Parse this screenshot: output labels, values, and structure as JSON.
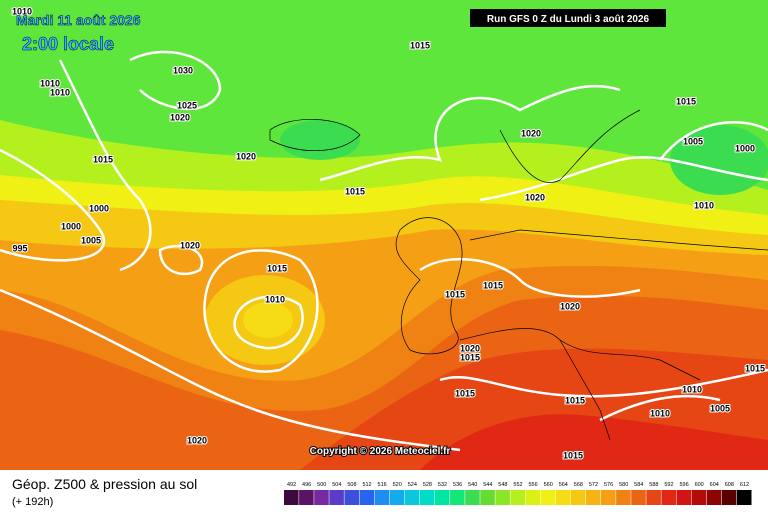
{
  "header": {
    "valid_time": "Mardi 11 août 2026",
    "local_time": "2:00 locale",
    "run": "Run GFS 0 Z du Lundi 3 août 2026"
  },
  "isobar_labels": [
    "1010",
    "1030",
    "1010",
    "1010",
    "1025",
    "1020",
    "1015",
    "1015",
    "1020",
    "1005",
    "1000",
    "1020",
    "1015",
    "1015",
    "1020",
    "1010",
    "1000",
    "1000",
    "1005",
    "1020",
    "995",
    "1015",
    "1015",
    "1015",
    "1010",
    "1020",
    "1020",
    "1015",
    "1015",
    "1010",
    "1015",
    "1015",
    "1005",
    "1010",
    "1020",
    "1015"
  ],
  "copyright": "Copyright © 2026 Meteociel.fr",
  "legend": {
    "title": "Géop. Z500 & pression au sol",
    "lead_time": "(+ 192h)",
    "scale": [
      492,
      496,
      500,
      504,
      508,
      512,
      516,
      520,
      524,
      528,
      532,
      536,
      540,
      544,
      548,
      552,
      556,
      560,
      564,
      568,
      572,
      576,
      580,
      584,
      588,
      592,
      596,
      600,
      604,
      608,
      612
    ]
  }
}
